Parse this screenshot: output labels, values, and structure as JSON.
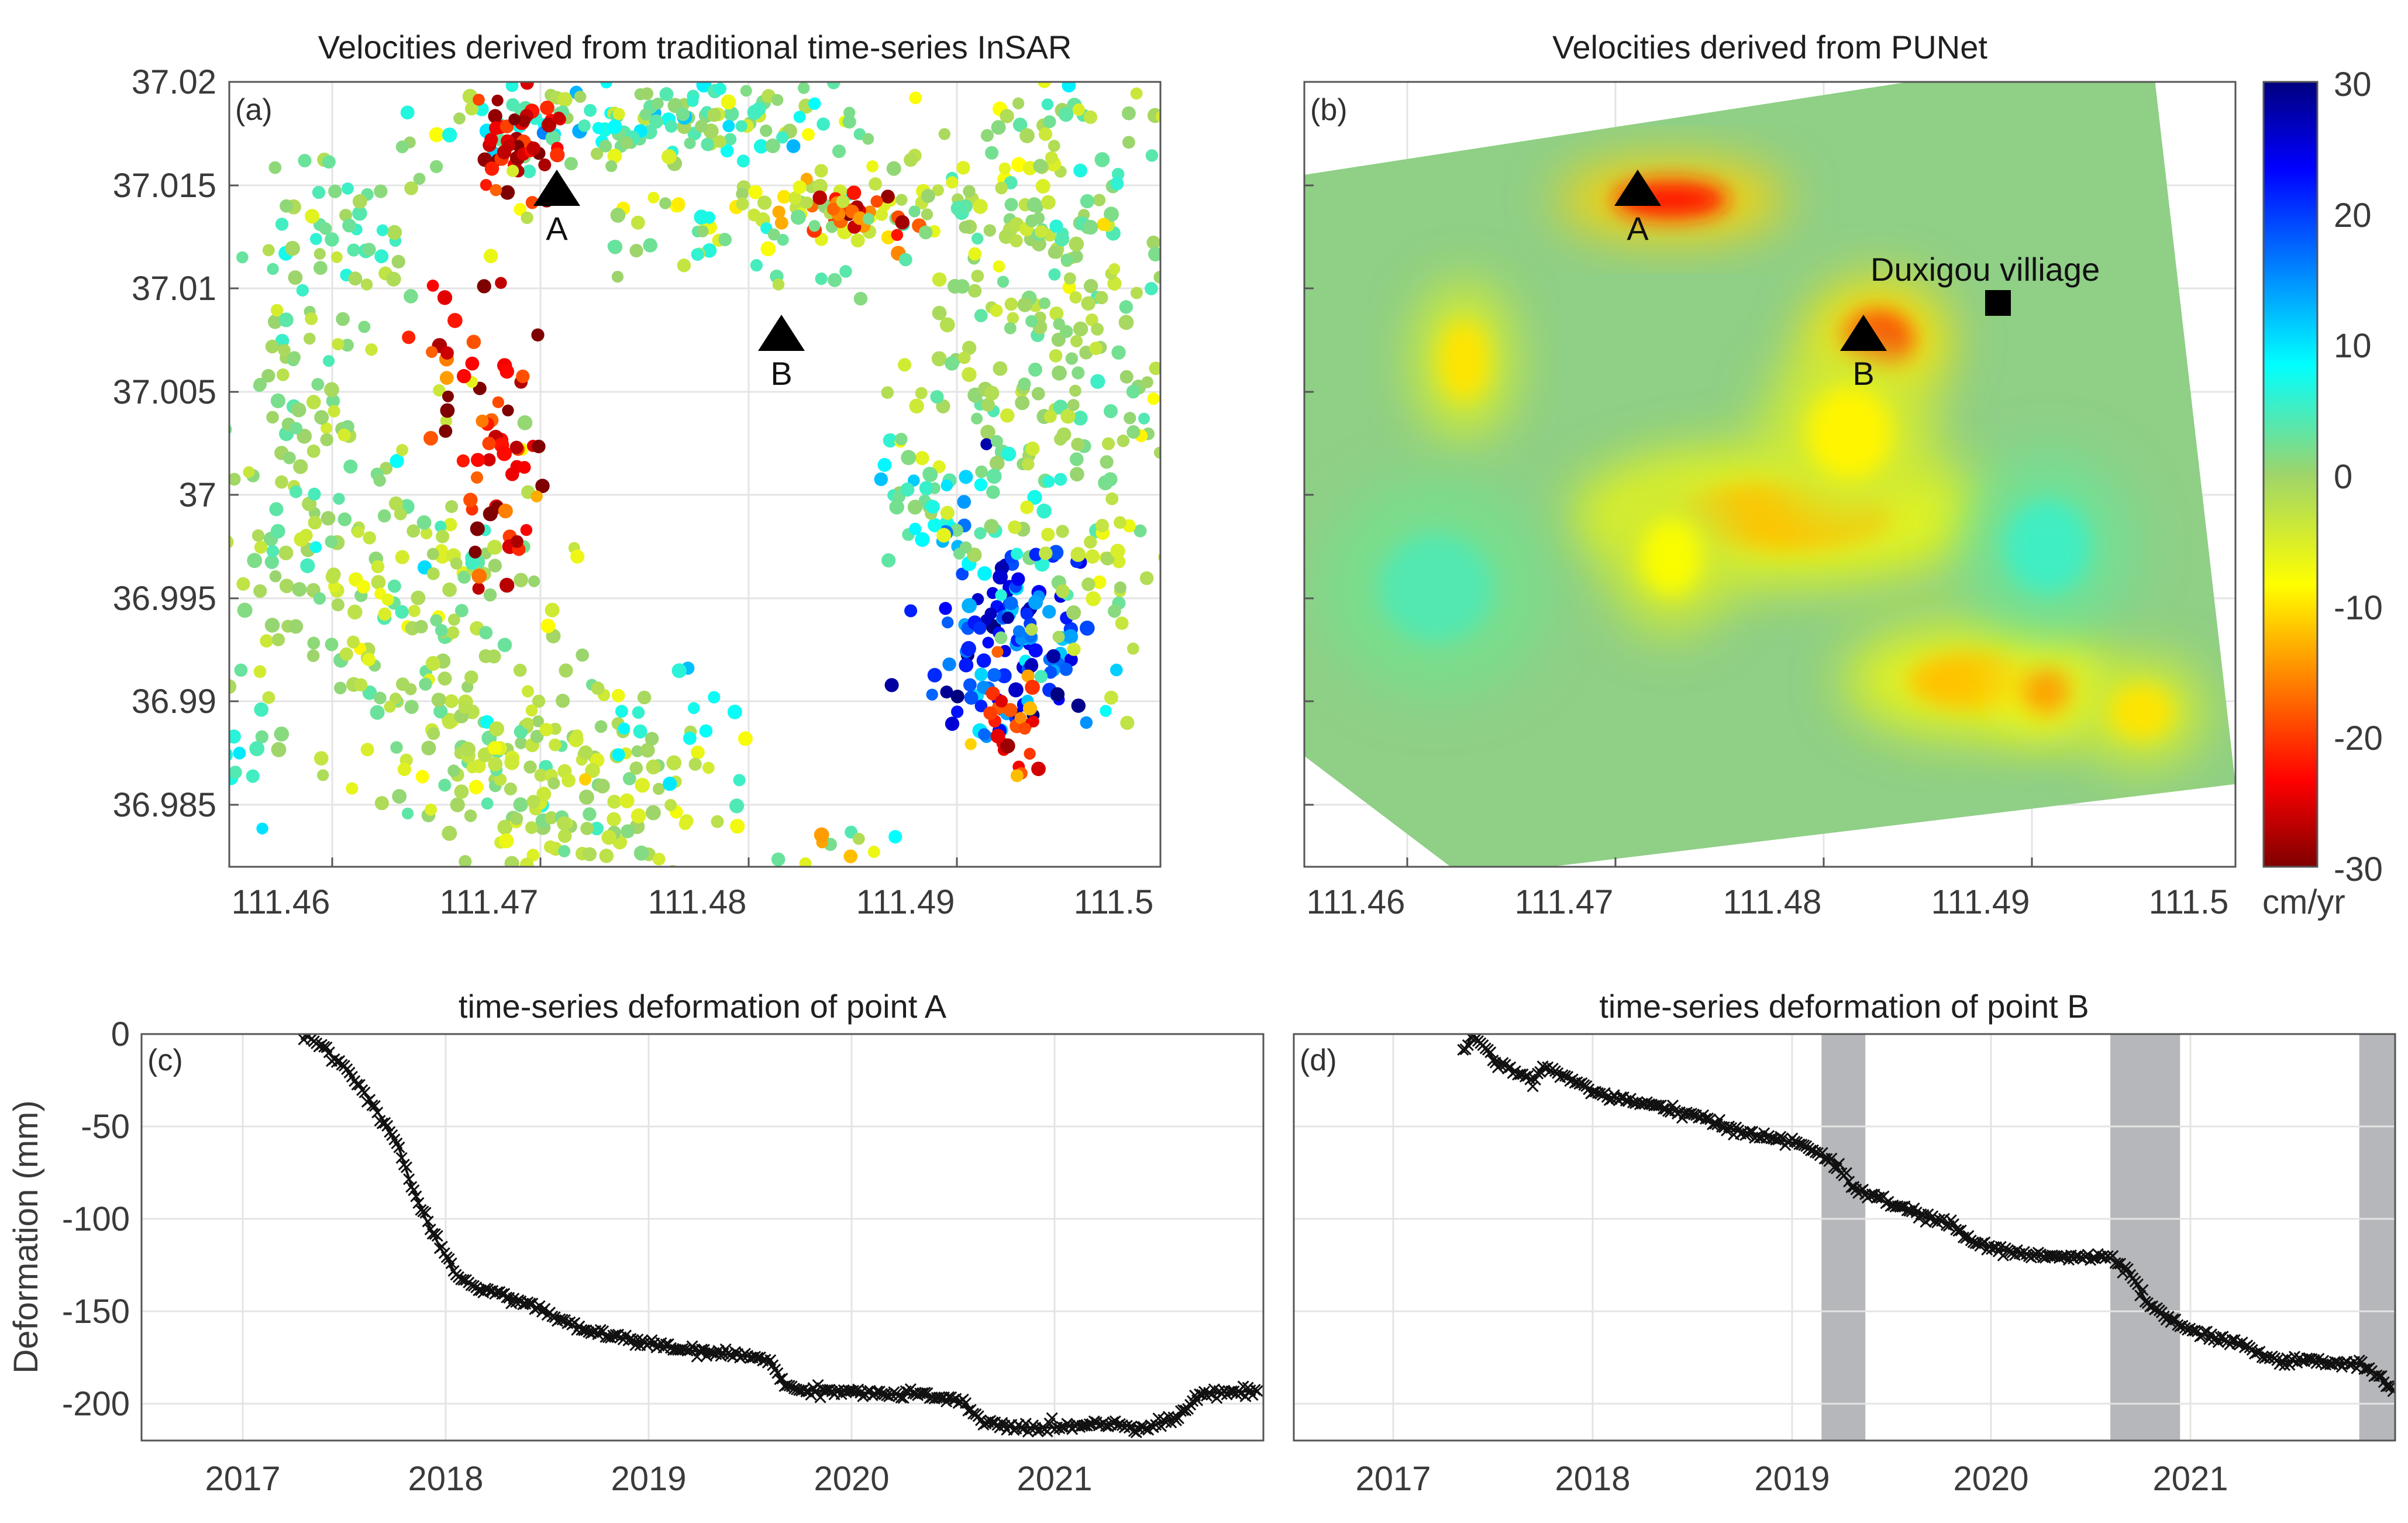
{
  "colors": {
    "series_line": "#111111",
    "shade": "#b5b7bb",
    "frame": "#555555"
  },
  "chart_data": [
    {
      "id": "a",
      "panel": "(a)",
      "type": "scatter",
      "title": "Velocities derived from traditional time-series InSAR",
      "xlim": [
        111.455,
        111.5045
      ],
      "ylim": [
        36.982,
        37.02
      ],
      "xticks": [
        111.46,
        111.47,
        111.48,
        111.49,
        111.5
      ],
      "xticklabels": [
        "111.46",
        "111.47",
        "111.48",
        "111.49",
        "111.5"
      ],
      "yticks": [
        36.985,
        36.99,
        36.995,
        37,
        37.005,
        37.01,
        37.015,
        37.02
      ],
      "yticklabels": [
        "36.985",
        "36.99",
        "36.995",
        "37",
        "37.005",
        "37.01",
        "37.015",
        "37.02"
      ],
      "markers": [
        {
          "label": "A",
          "lon": 111.4743,
          "lat": 37.0145
        },
        {
          "label": "B",
          "lon": 111.4853,
          "lat": 37.0075
        }
      ],
      "clusters": [
        {
          "lon": 111.4775,
          "lat": 37.018,
          "slon": 0.006,
          "slat": 0.0012,
          "n": 140,
          "v": 3,
          "sv": 5
        },
        {
          "lon": 111.4705,
          "lat": 37.0173,
          "slon": 0.0012,
          "slat": 0.0012,
          "n": 45,
          "v": -26,
          "sv": 4
        },
        {
          "lon": 111.4855,
          "lat": 37.0137,
          "slon": 0.004,
          "slat": 0.0008,
          "n": 60,
          "v": -5,
          "sv": 6
        },
        {
          "lon": 111.4885,
          "lat": 37.0137,
          "slon": 0.0012,
          "slat": 0.0006,
          "n": 25,
          "v": -20,
          "sv": 5
        },
        {
          "lon": 111.4975,
          "lat": 37.0145,
          "slon": 0.004,
          "slat": 0.004,
          "n": 160,
          "v": -1,
          "sv": 3
        },
        {
          "lon": 111.5,
          "lat": 37.005,
          "slon": 0.0035,
          "slat": 0.004,
          "n": 120,
          "v": 0,
          "sv": 3
        },
        {
          "lon": 111.461,
          "lat": 37.0125,
          "slon": 0.002,
          "slat": 0.0025,
          "n": 50,
          "v": 2,
          "sv": 3
        },
        {
          "lon": 111.459,
          "lat": 37.0,
          "slon": 0.003,
          "slat": 0.005,
          "n": 140,
          "v": 0,
          "sv": 3
        },
        {
          "lon": 111.466,
          "lat": 36.993,
          "slon": 0.003,
          "slat": 0.004,
          "n": 130,
          "v": -1,
          "sv": 3
        },
        {
          "lon": 111.4725,
          "lat": 36.986,
          "slon": 0.004,
          "slat": 0.0025,
          "n": 160,
          "v": -2,
          "sv": 3
        },
        {
          "lon": 111.4695,
          "lat": 37.001,
          "slon": 0.0012,
          "slat": 0.003,
          "n": 45,
          "v": -24,
          "sv": 6
        },
        {
          "lon": 111.4675,
          "lat": 37.0075,
          "slon": 0.0015,
          "slat": 0.002,
          "n": 20,
          "v": -22,
          "sv": 5
        },
        {
          "lon": 111.4965,
          "lat": 36.993,
          "slon": 0.0022,
          "slat": 0.0025,
          "n": 130,
          "v": 20,
          "sv": 6
        },
        {
          "lon": 111.4935,
          "lat": 36.9995,
          "slon": 0.0025,
          "slat": 0.002,
          "n": 60,
          "v": 4,
          "sv": 5
        },
        {
          "lon": 111.4965,
          "lat": 36.989,
          "slon": 0.001,
          "slat": 0.0015,
          "n": 25,
          "v": -20,
          "sv": 6
        },
        {
          "lon": 111.5015,
          "lat": 36.9965,
          "slon": 0.002,
          "slat": 0.003,
          "n": 40,
          "v": -2,
          "sv": 3
        },
        {
          "lon": 111.4795,
          "lat": 37.0125,
          "slon": 0.004,
          "slat": 0.001,
          "n": 30,
          "v": 2,
          "sv": 4
        },
        {
          "lon": 111.4865,
          "lat": 36.9825,
          "slon": 0.002,
          "slat": 0.0005,
          "n": 10,
          "v": -5,
          "sv": 8
        },
        {
          "lon": 111.4555,
          "lat": 36.986,
          "slon": 0.001,
          "slat": 0.002,
          "n": 15,
          "v": 6,
          "sv": 3
        },
        {
          "lon": 111.4785,
          "lat": 36.9888,
          "slon": 0.002,
          "slat": 0.0012,
          "n": 12,
          "v": 8,
          "sv": 3
        }
      ]
    },
    {
      "id": "b",
      "panel": "(b)",
      "type": "heatmap",
      "title": "Velocities derived from PUNet",
      "xlim": [
        111.455,
        111.5045
      ],
      "ylim": [
        36.982,
        37.02
      ],
      "xticks": [
        111.46,
        111.47,
        111.48,
        111.49,
        111.5
      ],
      "xticklabels": [
        "111.46",
        "111.47",
        "111.48",
        "111.49",
        "111.5"
      ],
      "yticks": [
        36.985,
        36.99,
        36.995,
        37,
        37.005,
        37.01,
        37.015,
        37.02
      ],
      "footprint": [
        [
          111.455,
          37.0155
        ],
        [
          111.5,
          37.0218
        ],
        [
          111.5045,
          36.986
        ],
        [
          111.4635,
          36.9815
        ],
        [
          111.4548,
          36.9875
        ]
      ],
      "markers": [
        {
          "label": "A",
          "lon": 111.4743,
          "lat": 37.0145
        },
        {
          "label": "B",
          "lon": 111.4853,
          "lat": 37.0075
        }
      ],
      "annotation": {
        "label": "Duxigou villiage",
        "lon": 111.4923,
        "lat": 37.0095
      },
      "anomalies": [
        {
          "lon": 111.4745,
          "lat": 37.0143,
          "rlon": 0.004,
          "rlat": 0.0012,
          "v": -22
        },
        {
          "lon": 111.4855,
          "lat": 37.0075,
          "rlon": 0.0025,
          "rlat": 0.0019,
          "v": -20
        },
        {
          "lon": 111.4635,
          "lat": 37.0065,
          "rlon": 0.0017,
          "rlat": 0.0025,
          "v": -10
        },
        {
          "lon": 111.4805,
          "lat": 36.999,
          "rlon": 0.0075,
          "rlat": 0.0022,
          "v": -12
        },
        {
          "lon": 111.484,
          "lat": 37.003,
          "rlon": 0.003,
          "rlat": 0.003,
          "v": -9
        },
        {
          "lon": 111.4745,
          "lat": 36.997,
          "rlon": 0.0022,
          "rlat": 0.0025,
          "v": -8
        },
        {
          "lon": 111.4905,
          "lat": 36.991,
          "rlon": 0.0045,
          "rlat": 0.0018,
          "v": -12
        },
        {
          "lon": 111.4945,
          "lat": 36.9905,
          "rlon": 0.0018,
          "rlat": 0.0015,
          "v": -14
        },
        {
          "lon": 111.4995,
          "lat": 36.9895,
          "rlon": 0.0022,
          "rlat": 0.0017,
          "v": -10
        },
        {
          "lon": 111.4945,
          "lat": 36.9975,
          "rlon": 0.003,
          "rlat": 0.003,
          "v": 5
        },
        {
          "lon": 111.462,
          "lat": 36.9955,
          "rlon": 0.004,
          "rlat": 0.0035,
          "v": 4
        }
      ],
      "colorbar": {
        "label": "cm/yr",
        "clim": [
          -30,
          30
        ],
        "ticks": [
          30,
          20,
          10,
          0,
          -10,
          -20,
          -30
        ],
        "ticklabels": [
          "30",
          "20",
          "10",
          "0",
          "-10",
          "-20",
          "-30"
        ]
      }
    },
    {
      "id": "c",
      "panel": "(c)",
      "type": "line",
      "title": "time-series deformation of point A",
      "ylabel": "Deformation (mm)",
      "xlim": [
        2016.45,
        2021.98
      ],
      "ylim": [
        -220,
        0
      ],
      "xticks": [
        2017,
        2018,
        2019,
        2020,
        2021
      ],
      "xticklabels": [
        "2017",
        "2018",
        "2019",
        "2020",
        "2021"
      ],
      "yticks": [
        0,
        -50,
        -100,
        -150,
        -200
      ],
      "yticklabels": [
        "0",
        "-50",
        "-100",
        "-150",
        "-200"
      ],
      "points": [
        [
          2017.25,
          0
        ],
        [
          2017.35,
          -8
        ],
        [
          2017.45,
          -18
        ],
        [
          2017.55,
          -32
        ],
        [
          2017.65,
          -48
        ],
        [
          2017.72,
          -62
        ],
        [
          2017.78,
          -82
        ],
        [
          2017.85,
          -100
        ],
        [
          2017.92,
          -115
        ],
        [
          2018.0,
          -130
        ],
        [
          2018.1,
          -137
        ],
        [
          2018.25,
          -142
        ],
        [
          2018.4,
          -148
        ],
        [
          2018.55,
          -157
        ],
        [
          2018.7,
          -162
        ],
        [
          2018.85,
          -165
        ],
        [
          2019.0,
          -169
        ],
        [
          2019.2,
          -172
        ],
        [
          2019.4,
          -174
        ],
        [
          2019.55,
          -176
        ],
        [
          2019.62,
          -191
        ],
        [
          2019.75,
          -193
        ],
        [
          2019.9,
          -193
        ],
        [
          2020.1,
          -195
        ],
        [
          2020.3,
          -195
        ],
        [
          2020.5,
          -200
        ],
        [
          2020.6,
          -210
        ],
        [
          2020.75,
          -213
        ],
        [
          2020.95,
          -213
        ],
        [
          2021.1,
          -211
        ],
        [
          2021.25,
          -211
        ],
        [
          2021.4,
          -213
        ],
        [
          2021.55,
          -208
        ],
        [
          2021.62,
          -200
        ],
        [
          2021.7,
          -194
        ],
        [
          2021.8,
          -194
        ],
        [
          2021.95,
          -193
        ]
      ]
    },
    {
      "id": "d",
      "panel": "(d)",
      "type": "line",
      "title": "time-series deformation of point B",
      "xlim": [
        2016.45,
        2021.98
      ],
      "ylim": [
        -220,
        0
      ],
      "xticks": [
        2017,
        2018,
        2019,
        2020,
        2021
      ],
      "xticklabels": [
        "2017",
        "2018",
        "2019",
        "2020",
        "2021"
      ],
      "yticks": [
        0,
        -50,
        -100,
        -150,
        -200
      ],
      "shaded_periods": [
        [
          2019.1,
          2019.32
        ],
        [
          2020.55,
          2020.9
        ],
        [
          2021.8,
          2021.98
        ]
      ],
      "points": [
        [
          2017.3,
          -10
        ],
        [
          2017.35,
          0
        ],
        [
          2017.45,
          -13
        ],
        [
          2017.55,
          -20
        ],
        [
          2017.65,
          -25
        ],
        [
          2017.7,
          -18
        ],
        [
          2017.85,
          -25
        ],
        [
          2018.0,
          -33
        ],
        [
          2018.2,
          -38
        ],
        [
          2018.4,
          -42
        ],
        [
          2018.6,
          -50
        ],
        [
          2018.8,
          -55
        ],
        [
          2019.0,
          -60
        ],
        [
          2019.15,
          -68
        ],
        [
          2019.25,
          -82
        ],
        [
          2019.4,
          -90
        ],
        [
          2019.6,
          -98
        ],
        [
          2019.75,
          -103
        ],
        [
          2019.85,
          -112
        ],
        [
          2020.0,
          -117
        ],
        [
          2020.2,
          -120
        ],
        [
          2020.4,
          -121
        ],
        [
          2020.55,
          -121
        ],
        [
          2020.65,
          -130
        ],
        [
          2020.75,
          -148
        ],
        [
          2020.9,
          -158
        ],
        [
          2021.0,
          -162
        ],
        [
          2021.15,
          -167
        ],
        [
          2021.3,
          -172
        ],
        [
          2021.4,
          -177
        ],
        [
          2021.55,
          -177
        ],
        [
          2021.7,
          -178
        ],
        [
          2021.8,
          -178
        ],
        [
          2021.9,
          -185
        ],
        [
          2021.97,
          -192
        ]
      ]
    }
  ]
}
